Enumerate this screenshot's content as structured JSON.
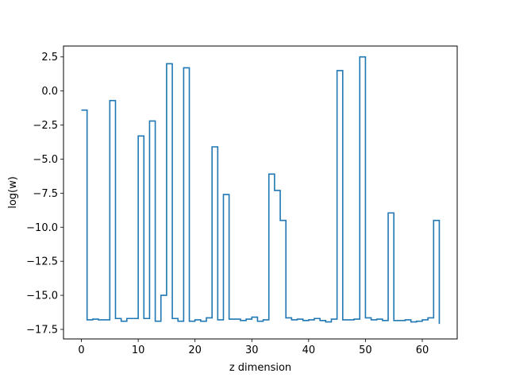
{
  "chart_data": {
    "type": "line",
    "drawstyle": "steps-post",
    "title": "",
    "xlabel": "z dimension",
    "ylabel": "log(w)",
    "xlim": [
      -3.15,
      66.15
    ],
    "ylim": [
      -18.2,
      3.3
    ],
    "grid": false,
    "xticks": [
      0,
      10,
      20,
      30,
      40,
      50,
      60
    ],
    "xtick_labels": [
      "0",
      "10",
      "20",
      "30",
      "40",
      "50",
      "60"
    ],
    "yticks": [
      2.5,
      0.0,
      -2.5,
      -5.0,
      -7.5,
      -10.0,
      -12.5,
      -15.0,
      -17.5
    ],
    "ytick_labels": [
      "2.5",
      "0.0",
      "−2.5",
      "−5.0",
      "−7.5",
      "−10.0",
      "−12.5",
      "−15.0",
      "−17.5"
    ],
    "series": [
      {
        "color": "#1f77b4",
        "x": [
          0,
          1,
          2,
          3,
          4,
          5,
          6,
          7,
          8,
          9,
          10,
          11,
          12,
          13,
          14,
          15,
          16,
          17,
          18,
          19,
          20,
          21,
          22,
          23,
          24,
          25,
          26,
          27,
          28,
          29,
          30,
          31,
          32,
          33,
          34,
          35,
          36,
          37,
          38,
          39,
          40,
          41,
          42,
          43,
          44,
          45,
          46,
          47,
          48,
          49,
          50,
          51,
          52,
          53,
          54,
          55,
          56,
          57,
          58,
          59,
          60,
          61,
          62,
          63
        ],
        "values": [
          -1.4,
          -16.8,
          -16.75,
          -16.8,
          -16.8,
          -0.7,
          -16.7,
          -16.9,
          -16.7,
          -16.7,
          -3.3,
          -16.7,
          -2.2,
          -16.9,
          -15.0,
          2.0,
          -16.7,
          -16.9,
          1.7,
          -16.9,
          -16.8,
          -16.9,
          -16.65,
          -4.1,
          -16.8,
          -7.6,
          -16.75,
          -16.75,
          -16.85,
          -16.75,
          -16.6,
          -16.9,
          -16.8,
          -6.1,
          -7.3,
          -9.5,
          -16.65,
          -16.8,
          -16.75,
          -16.85,
          -16.8,
          -16.7,
          -16.85,
          -16.95,
          -16.75,
          1.5,
          -16.8,
          -16.8,
          -16.75,
          2.5,
          -16.65,
          -16.8,
          -16.75,
          -16.85,
          -8.95,
          -16.85,
          -16.85,
          -16.8,
          -16.95,
          -16.9,
          -16.8,
          -16.65,
          -9.5,
          -17.1
        ]
      }
    ]
  }
}
